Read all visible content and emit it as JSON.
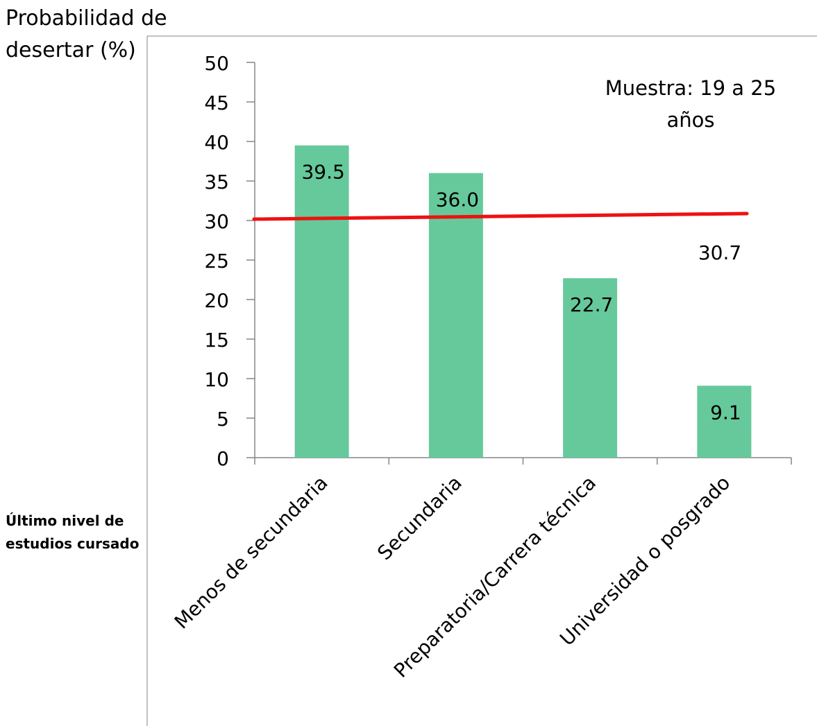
{
  "chart_data": {
    "type": "bar",
    "ylabel": "Probabilidad de desertar (%)",
    "ylabel_lines": [
      "Probabilidad de",
      "desertar (%)"
    ],
    "xlabel": "Último nivel de estudios cursado",
    "xlabel_lines": [
      "Último nivel de",
      "estudios cursado"
    ],
    "categories": [
      "Menos de secundaria",
      "Secundaria",
      "Preparatoria/Carrera técnica",
      "Universidad o posgrado"
    ],
    "values": [
      39.5,
      36.0,
      22.7,
      9.1
    ],
    "data_labels": [
      "39.5",
      "36.0",
      "22.7",
      "9.1"
    ],
    "ylim": [
      0,
      50
    ],
    "yticks": [
      "0",
      "5",
      "10",
      "15",
      "20",
      "25",
      "30",
      "35",
      "40",
      "45",
      "50"
    ],
    "grid": false,
    "reference_line": {
      "value": 30.7,
      "label": "30.7",
      "color": "#ee1111"
    },
    "annotation": {
      "lines": [
        "Muestra: 19 a 25",
        "años"
      ]
    },
    "bar_color": "#66c99b"
  }
}
